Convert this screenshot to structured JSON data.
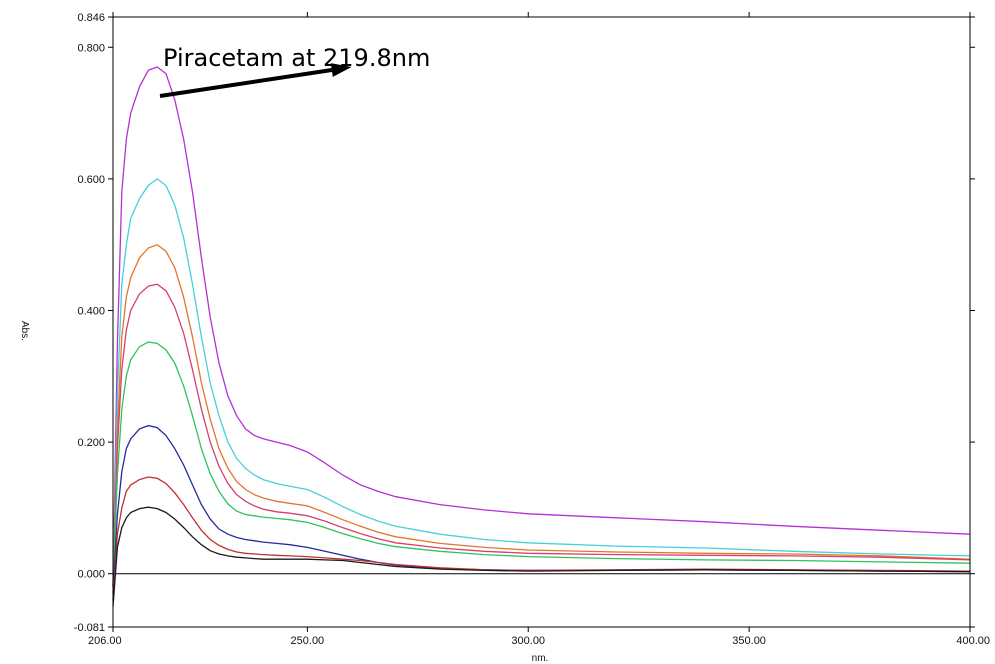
{
  "chart_data": {
    "type": "line",
    "title": "",
    "xlabel": "nm.",
    "ylabel": "Abs.",
    "xlim": [
      206.0,
      400.0
    ],
    "ylim": [
      -0.081,
      0.846
    ],
    "x_ticks": [
      "206.00",
      "250.00",
      "300.00",
      "350.00",
      "400.00"
    ],
    "y_ticks": [
      "-0.081",
      "0.000",
      "0.200",
      "0.400",
      "0.600",
      "0.800",
      "0.846"
    ],
    "grid": false,
    "legend": "none",
    "annotation": {
      "text": "Piracetam at 219.8nm",
      "points_to": [
        260,
        0.77
      ]
    },
    "series": [
      {
        "color": "#b530d6",
        "x": [
          206,
          207,
          208,
          209,
          210,
          212,
          214,
          216,
          218,
          220,
          222,
          224,
          226,
          228,
          230,
          232,
          234,
          236,
          238,
          240,
          243,
          246,
          250,
          254,
          258,
          262,
          266,
          270,
          280,
          290,
          300,
          320,
          340,
          360,
          380,
          400
        ],
        "values": [
          -0.02,
          0.35,
          0.58,
          0.66,
          0.7,
          0.74,
          0.765,
          0.77,
          0.76,
          0.72,
          0.66,
          0.58,
          0.48,
          0.39,
          0.32,
          0.27,
          0.24,
          0.22,
          0.21,
          0.205,
          0.2,
          0.195,
          0.185,
          0.168,
          0.15,
          0.135,
          0.125,
          0.117,
          0.105,
          0.097,
          0.091,
          0.085,
          0.079,
          0.072,
          0.066,
          0.06
        ]
      },
      {
        "color": "#46d0d8",
        "x": [
          206,
          207,
          208,
          209,
          210,
          212,
          214,
          216,
          218,
          220,
          222,
          224,
          226,
          228,
          230,
          232,
          234,
          236,
          238,
          240,
          243,
          246,
          250,
          254,
          258,
          262,
          266,
          270,
          280,
          290,
          300,
          320,
          340,
          360,
          380,
          400
        ],
        "values": [
          -0.02,
          0.27,
          0.44,
          0.5,
          0.54,
          0.57,
          0.59,
          0.6,
          0.59,
          0.56,
          0.51,
          0.44,
          0.36,
          0.29,
          0.24,
          0.2,
          0.175,
          0.16,
          0.15,
          0.143,
          0.137,
          0.133,
          0.128,
          0.116,
          0.102,
          0.09,
          0.08,
          0.072,
          0.06,
          0.052,
          0.047,
          0.042,
          0.039,
          0.034,
          0.03,
          0.027
        ]
      },
      {
        "color": "#e3742c",
        "x": [
          206,
          207,
          208,
          209,
          210,
          212,
          214,
          216,
          218,
          220,
          222,
          224,
          226,
          228,
          230,
          232,
          234,
          236,
          238,
          240,
          243,
          246,
          250,
          254,
          258,
          262,
          266,
          270,
          280,
          290,
          300,
          320,
          340,
          360,
          380,
          400
        ],
        "values": [
          -0.02,
          0.22,
          0.36,
          0.42,
          0.45,
          0.48,
          0.495,
          0.5,
          0.49,
          0.465,
          0.42,
          0.36,
          0.29,
          0.235,
          0.19,
          0.16,
          0.14,
          0.128,
          0.12,
          0.115,
          0.11,
          0.107,
          0.103,
          0.093,
          0.082,
          0.072,
          0.063,
          0.056,
          0.046,
          0.04,
          0.036,
          0.033,
          0.031,
          0.03,
          0.027,
          0.022
        ]
      },
      {
        "color": "#d6406a",
        "x": [
          206,
          207,
          208,
          209,
          210,
          212,
          214,
          216,
          218,
          220,
          222,
          224,
          226,
          228,
          230,
          232,
          234,
          236,
          238,
          240,
          243,
          246,
          250,
          254,
          258,
          262,
          266,
          270,
          280,
          290,
          300,
          320,
          340,
          360,
          380,
          400
        ],
        "values": [
          -0.02,
          0.19,
          0.31,
          0.37,
          0.4,
          0.425,
          0.437,
          0.44,
          0.43,
          0.405,
          0.365,
          0.31,
          0.25,
          0.2,
          0.163,
          0.137,
          0.12,
          0.11,
          0.103,
          0.098,
          0.094,
          0.092,
          0.088,
          0.08,
          0.07,
          0.061,
          0.053,
          0.047,
          0.039,
          0.034,
          0.031,
          0.029,
          0.028,
          0.027,
          0.025,
          0.021
        ]
      },
      {
        "color": "#2ec45c",
        "x": [
          206,
          207,
          208,
          209,
          210,
          212,
          214,
          216,
          218,
          220,
          222,
          224,
          226,
          228,
          230,
          232,
          234,
          236,
          238,
          240,
          243,
          246,
          250,
          254,
          258,
          262,
          266,
          270,
          280,
          290,
          300,
          320,
          340,
          360,
          380,
          400
        ],
        "values": [
          -0.02,
          0.15,
          0.25,
          0.3,
          0.325,
          0.345,
          0.352,
          0.35,
          0.34,
          0.32,
          0.285,
          0.24,
          0.19,
          0.152,
          0.125,
          0.106,
          0.095,
          0.09,
          0.088,
          0.086,
          0.084,
          0.082,
          0.078,
          0.07,
          0.061,
          0.053,
          0.046,
          0.041,
          0.034,
          0.029,
          0.026,
          0.023,
          0.021,
          0.02,
          0.018,
          0.016
        ]
      },
      {
        "color": "#252a9c",
        "x": [
          206,
          207,
          208,
          209,
          210,
          212,
          214,
          216,
          218,
          220,
          222,
          224,
          226,
          228,
          230,
          232,
          234,
          236,
          238,
          240,
          243,
          246,
          250,
          254,
          258,
          262,
          266,
          270,
          280,
          290,
          300,
          320,
          340,
          360,
          380,
          400
        ],
        "values": [
          -0.03,
          0.09,
          0.155,
          0.19,
          0.205,
          0.22,
          0.225,
          0.222,
          0.21,
          0.19,
          0.165,
          0.135,
          0.105,
          0.083,
          0.068,
          0.06,
          0.055,
          0.052,
          0.05,
          0.048,
          0.046,
          0.044,
          0.04,
          0.034,
          0.028,
          0.022,
          0.017,
          0.013,
          0.008,
          0.006,
          0.005,
          0.005,
          0.006,
          0.005,
          0.004,
          0.003
        ]
      },
      {
        "color": "#c23030",
        "x": [
          206,
          207,
          208,
          209,
          210,
          212,
          214,
          216,
          218,
          220,
          222,
          224,
          226,
          228,
          230,
          232,
          234,
          236,
          238,
          240,
          243,
          246,
          250,
          254,
          258,
          262,
          266,
          270,
          280,
          290,
          300,
          320,
          340,
          360,
          380,
          400
        ],
        "values": [
          -0.04,
          0.06,
          0.1,
          0.125,
          0.135,
          0.143,
          0.147,
          0.145,
          0.137,
          0.123,
          0.105,
          0.085,
          0.066,
          0.052,
          0.043,
          0.037,
          0.033,
          0.031,
          0.03,
          0.029,
          0.028,
          0.027,
          0.026,
          0.024,
          0.022,
          0.02,
          0.017,
          0.014,
          0.009,
          0.006,
          0.005,
          0.006,
          0.007,
          0.006,
          0.005,
          0.004
        ]
      },
      {
        "color": "#1a1a1a",
        "x": [
          206,
          207,
          208,
          209,
          210,
          212,
          214,
          216,
          218,
          220,
          222,
          224,
          226,
          228,
          230,
          232,
          234,
          236,
          238,
          240,
          243,
          246,
          250,
          254,
          258,
          262,
          266,
          270,
          280,
          290,
          300,
          320,
          340,
          360,
          380,
          400
        ],
        "values": [
          -0.05,
          0.04,
          0.07,
          0.085,
          0.093,
          0.099,
          0.101,
          0.099,
          0.093,
          0.083,
          0.07,
          0.056,
          0.044,
          0.035,
          0.03,
          0.027,
          0.025,
          0.024,
          0.023,
          0.022,
          0.022,
          0.022,
          0.022,
          0.021,
          0.02,
          0.017,
          0.014,
          0.011,
          0.007,
          0.005,
          0.004,
          0.005,
          0.006,
          0.005,
          0.004,
          0.003
        ]
      }
    ]
  }
}
